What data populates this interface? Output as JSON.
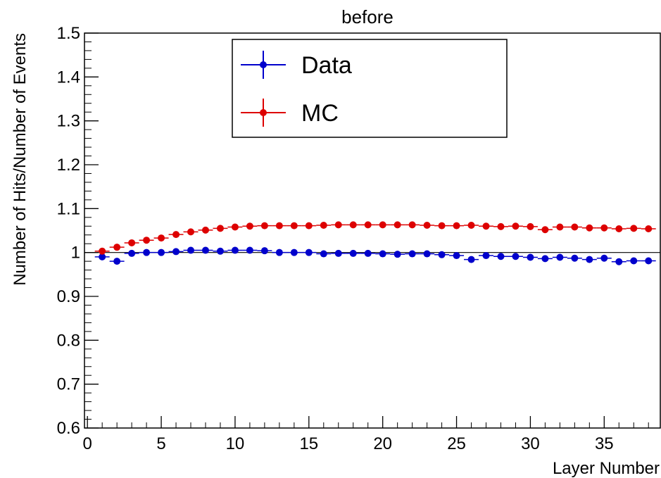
{
  "chart_data": {
    "type": "scatter",
    "title": "before",
    "xlabel": "Layer Number",
    "ylabel": "Number of Hits/Number of Events",
    "xlim": [
      -0.2,
      38.8
    ],
    "ylim": [
      0.6,
      1.5
    ],
    "x_ticks": [
      "0",
      "5",
      "10",
      "15",
      "20",
      "25",
      "30",
      "35"
    ],
    "y_ticks": [
      "0.6",
      "0.7",
      "0.8",
      "0.9",
      "1",
      "1.1",
      "1.2",
      "1.3",
      "1.4",
      "1.5"
    ],
    "reference_line": 1.0,
    "legend_position": "top-center",
    "grid": false,
    "x": [
      1,
      2,
      3,
      4,
      5,
      6,
      7,
      8,
      9,
      10,
      11,
      12,
      13,
      14,
      15,
      16,
      17,
      18,
      19,
      20,
      21,
      22,
      23,
      24,
      25,
      26,
      27,
      28,
      29,
      30,
      31,
      32,
      33,
      34,
      35,
      36,
      37,
      38
    ],
    "series": [
      {
        "name": "Data",
        "color": "#0000cc",
        "values": [
          0.99,
          0.98,
          0.998,
          1.0,
          1.0,
          1.002,
          1.005,
          1.005,
          1.003,
          1.005,
          1.005,
          1.004,
          1.0,
          1.0,
          1.0,
          0.997,
          0.998,
          0.998,
          0.998,
          0.997,
          0.996,
          0.997,
          0.997,
          0.995,
          0.993,
          0.984,
          0.993,
          0.991,
          0.991,
          0.989,
          0.986,
          0.989,
          0.987,
          0.984,
          0.987,
          0.979,
          0.981,
          0.981
        ]
      },
      {
        "name": "MC",
        "color": "#dd0000",
        "values": [
          1.003,
          1.012,
          1.022,
          1.028,
          1.033,
          1.041,
          1.047,
          1.051,
          1.055,
          1.058,
          1.06,
          1.061,
          1.061,
          1.061,
          1.061,
          1.062,
          1.063,
          1.063,
          1.063,
          1.063,
          1.063,
          1.063,
          1.062,
          1.061,
          1.061,
          1.062,
          1.06,
          1.059,
          1.06,
          1.059,
          1.052,
          1.058,
          1.058,
          1.056,
          1.056,
          1.054,
          1.055,
          1.054
        ]
      }
    ]
  }
}
